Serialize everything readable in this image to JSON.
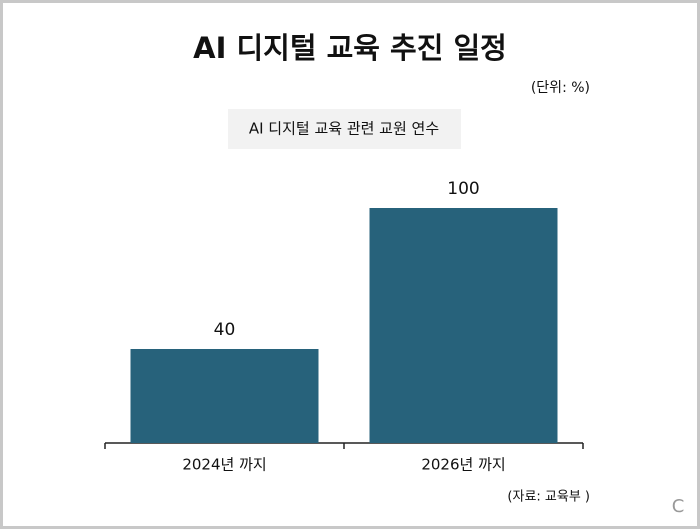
{
  "chart_data": {
    "type": "bar",
    "title": "AI 디지털 교육 추진 일정",
    "unit": "(단위: %)",
    "subtitle": "AI 디지털 교육 관련 교원 연수",
    "categories": [
      "2024년 까지",
      "2026년 까지"
    ],
    "values": [
      40,
      100
    ],
    "color": "#27627b",
    "ylim": [
      0,
      100
    ],
    "source": "(자료: 교육부 )",
    "corner_mark": "C"
  }
}
